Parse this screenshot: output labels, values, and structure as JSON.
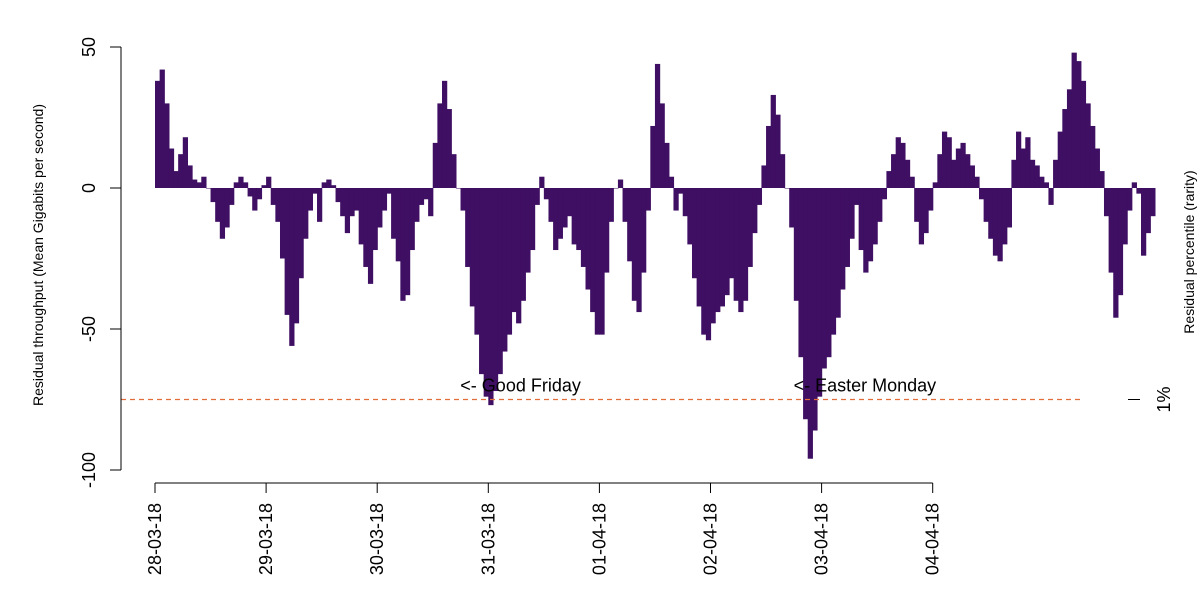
{
  "chart_data": {
    "type": "bar",
    "title": "",
    "ylabel": "Residual throughput (Mean Gigabits per second)",
    "ylabel_right": "Residual percentile (rarity)",
    "ylim": [
      -100,
      50
    ],
    "yticks": [
      -100,
      -50,
      0,
      50
    ],
    "ytick_labels": [
      "-100",
      "-50",
      "0",
      "50"
    ],
    "x_range_days": [
      28.0,
      36.0
    ],
    "x_tick_labels": [
      "28-03-18",
      "29-03-18",
      "30-03-18",
      "31-03-18",
      "01-04-18",
      "02-04-18",
      "03-04-18",
      "04-04-18"
    ],
    "bar_color": "#3f0f63",
    "threshold": {
      "value": -75,
      "label": "1%",
      "color": "#e06d3a",
      "style": "dashed"
    },
    "annotations": [
      {
        "text": "<- Good Friday",
        "x_day": 31.0,
        "y": -70
      },
      {
        "text": "<- Easter Monday",
        "x_day": 34.0,
        "y": -70
      }
    ],
    "series": [
      {
        "values_hourly": [
          38,
          42,
          30,
          14,
          6,
          12,
          18,
          8,
          3,
          2,
          4,
          0,
          -5,
          -12,
          -18,
          -14,
          -6,
          2,
          4,
          2,
          -3,
          -8,
          -4,
          1,
          4,
          -6,
          -12,
          -25,
          -45,
          -56,
          -48,
          -32,
          -18,
          -8,
          -2,
          -12,
          2,
          3,
          1,
          -5,
          -10,
          -16,
          -10,
          -8,
          -20,
          -28,
          -34,
          -22,
          -14,
          -8,
          -2,
          -18,
          -26,
          -40,
          -38,
          -22,
          -12,
          -6,
          -4,
          -10,
          16,
          30,
          38,
          28,
          12,
          0,
          -8,
          -28,
          -42,
          -52,
          -66,
          -74,
          -77,
          -72,
          -66,
          -58,
          -52,
          -44,
          -48,
          -40,
          -30,
          -22,
          -6,
          4,
          -4,
          -12,
          -22,
          -18,
          -14,
          -10,
          -20,
          -22,
          -28,
          -36,
          -44,
          -52,
          -52,
          -30,
          -12,
          0,
          3,
          -12,
          -26,
          -40,
          -44,
          -30,
          -8,
          22,
          44,
          30,
          16,
          4,
          -8,
          -2,
          -10,
          -20,
          -32,
          -42,
          -52,
          -54,
          -48,
          -44,
          -42,
          -38,
          -32,
          -40,
          -44,
          -40,
          -28,
          -16,
          -6,
          8,
          22,
          33,
          26,
          12,
          0,
          -14,
          -40,
          -60,
          -82,
          -96,
          -86,
          -74,
          -64,
          -60,
          -52,
          -46,
          -36,
          -28,
          -18,
          -6,
          -22,
          -30,
          -26,
          -20,
          -12,
          -4,
          6,
          12,
          18,
          16,
          10,
          4,
          -12,
          -20,
          -16,
          -8,
          2,
          12,
          20,
          18,
          10,
          14,
          16,
          12,
          8,
          4,
          -4,
          -12,
          -18,
          -24,
          -26,
          -20,
          -14,
          10,
          20,
          14,
          18,
          10,
          8,
          4,
          2,
          -6,
          10,
          20,
          28,
          35,
          48,
          45,
          38,
          30,
          22,
          14,
          6,
          -10,
          -30,
          -46,
          -38,
          -20,
          -8,
          2,
          -2,
          -24,
          -16,
          -10
        ]
      }
    ]
  }
}
